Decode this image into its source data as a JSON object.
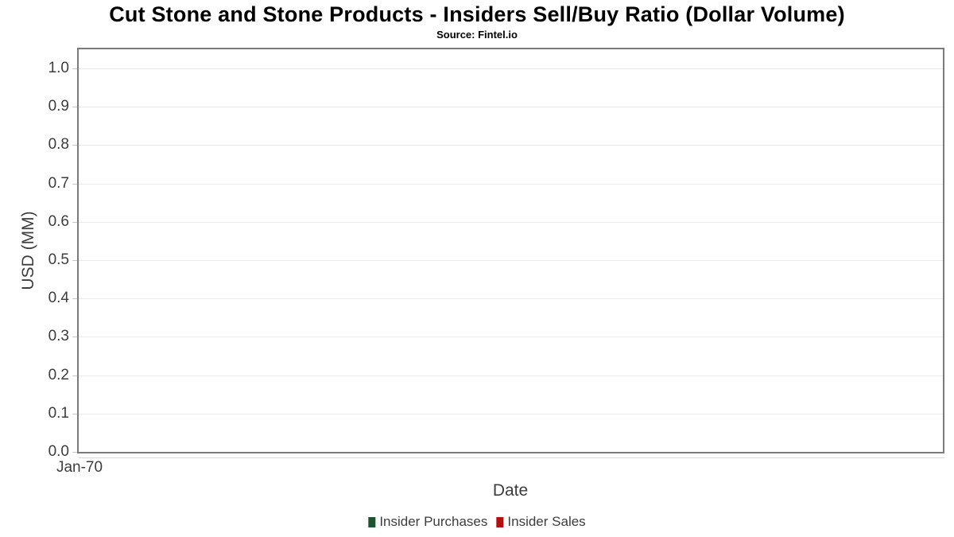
{
  "chart_data": {
    "type": "bar",
    "title": "Cut Stone and Stone Products - Insiders Sell/Buy Ratio (Dollar Volume)",
    "subtitle": "Source: Fintel.io",
    "xlabel": "Date",
    "ylabel": "USD (MM)",
    "x_ticks": [
      "Jan-70"
    ],
    "y_axis": {
      "range": [
        0,
        1.05
      ],
      "ticks": [
        {
          "label": "0.0",
          "value": 0.0
        },
        {
          "label": "0.1",
          "value": 0.1
        },
        {
          "label": "0.2",
          "value": 0.2
        },
        {
          "label": "0.3",
          "value": 0.3
        },
        {
          "label": "0.4",
          "value": 0.4
        },
        {
          "label": "0.5",
          "value": 0.5
        },
        {
          "label": "0.6",
          "value": 0.6
        },
        {
          "label": "0.7",
          "value": 0.7
        },
        {
          "label": "0.8",
          "value": 0.8
        },
        {
          "label": "0.9",
          "value": 0.9
        },
        {
          "label": "1.0",
          "value": 1.0
        }
      ]
    },
    "series": [
      {
        "name": "Insider Purchases",
        "color": "#1c5430",
        "values": []
      },
      {
        "name": "Insider Sales",
        "color": "#b1100f",
        "values": []
      }
    ],
    "grid": true,
    "legend_position": "bottom",
    "colors": {
      "grid": "#e9e9e9",
      "border": "#7b7b7b",
      "axis_line": "#d9d9d9",
      "tick": "#c9c9c9",
      "text": "#3d3d3d",
      "title": "#000000",
      "bg": "#ffffff"
    }
  }
}
